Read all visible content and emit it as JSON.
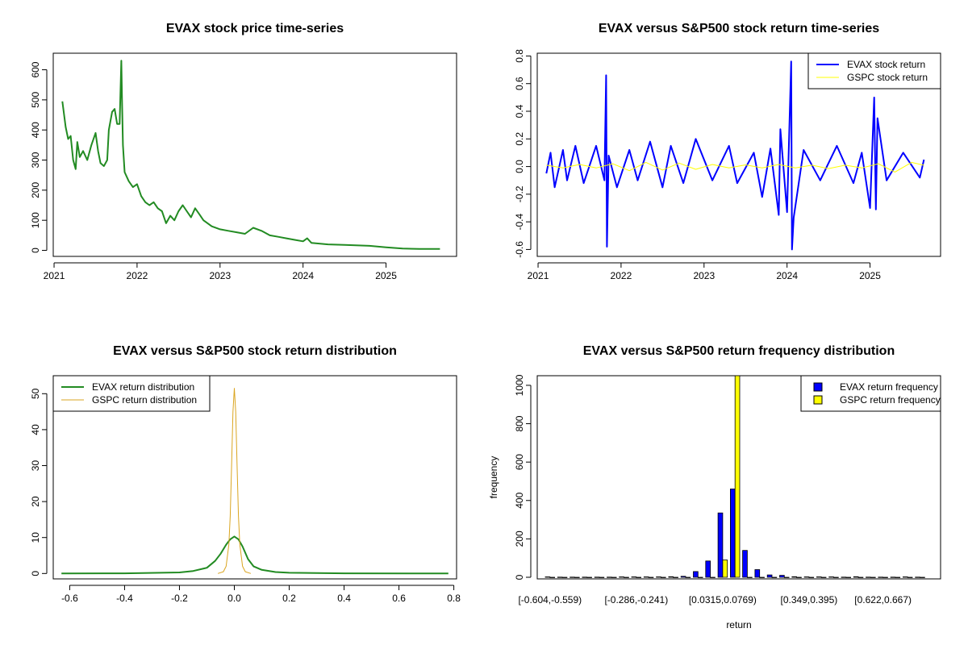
{
  "colors": {
    "price": "#228B22",
    "evax_return": "#0000FF",
    "gspc_return": "#FFFF00",
    "evax_density": "#228B22",
    "gspc_density": "#DAA520",
    "evax_bar": "#0000FF",
    "gspc_bar": "#FFFF00"
  },
  "chart_data": [
    {
      "id": "price",
      "type": "line",
      "title": "EVAX stock price time-series",
      "xlabel": "",
      "ylabel": "",
      "xlim": [
        2020.99,
        2025.85
      ],
      "ylim": [
        -20,
        655
      ],
      "xticks": [
        2021,
        2022,
        2023,
        2024,
        2025
      ],
      "xtick_labels": [
        "2021",
        "2022",
        "2023",
        "2024",
        "2025"
      ],
      "yticks": [
        0,
        100,
        200,
        300,
        400,
        500,
        600
      ],
      "ytick_labels": [
        "0",
        "100",
        "200",
        "300",
        "400",
        "500",
        "600"
      ],
      "series": [
        {
          "name": "EVAX price",
          "x": [
            2021.1,
            2021.14,
            2021.17,
            2021.2,
            2021.23,
            2021.26,
            2021.28,
            2021.31,
            2021.35,
            2021.4,
            2021.45,
            2021.5,
            2021.53,
            2021.56,
            2021.6,
            2021.64,
            2021.66,
            2021.7,
            2021.73,
            2021.76,
            2021.79,
            2021.81,
            2021.82,
            2021.83,
            2021.85,
            2021.9,
            2021.95,
            2022.0,
            2022.05,
            2022.1,
            2022.15,
            2022.2,
            2022.25,
            2022.3,
            2022.35,
            2022.4,
            2022.45,
            2022.5,
            2022.55,
            2022.6,
            2022.65,
            2022.7,
            2022.75,
            2022.8,
            2022.9,
            2023.0,
            2023.1,
            2023.2,
            2023.3,
            2023.4,
            2023.5,
            2023.6,
            2023.7,
            2023.8,
            2023.9,
            2024.0,
            2024.05,
            2024.1,
            2024.3,
            2024.5,
            2024.8,
            2025.0,
            2025.2,
            2025.4,
            2025.6,
            2025.65
          ],
          "values": [
            495,
            410,
            370,
            380,
            300,
            270,
            360,
            310,
            330,
            300,
            350,
            390,
            330,
            290,
            280,
            300,
            400,
            460,
            470,
            420,
            420,
            630,
            480,
            350,
            260,
            230,
            210,
            220,
            180,
            160,
            150,
            160,
            140,
            130,
            90,
            115,
            100,
            130,
            150,
            130,
            110,
            140,
            120,
            100,
            80,
            70,
            65,
            60,
            55,
            75,
            65,
            50,
            45,
            40,
            35,
            30,
            40,
            25,
            20,
            18,
            15,
            10,
            6,
            5,
            5,
            5
          ]
        }
      ]
    },
    {
      "id": "returns",
      "type": "line",
      "title": "EVAX versus S&P500 stock return time-series",
      "xlabel": "",
      "ylabel": "",
      "xlim": [
        2020.99,
        2025.85
      ],
      "ylim": [
        -0.65,
        0.82
      ],
      "xticks": [
        2021,
        2022,
        2023,
        2024,
        2025
      ],
      "xtick_labels": [
        "2021",
        "2022",
        "2023",
        "2024",
        "2025"
      ],
      "yticks": [
        -0.6,
        -0.4,
        -0.2,
        0.0,
        0.2,
        0.4,
        0.6,
        0.8
      ],
      "ytick_labels": [
        "-0.6",
        "-0.4",
        "-0.2",
        "0.0",
        "0.2",
        "0.4",
        "0.6",
        "0.8"
      ],
      "legend_position": "top-right",
      "series": [
        {
          "name": "EVAX stock return",
          "x": [
            2021.1,
            2021.15,
            2021.2,
            2021.3,
            2021.35,
            2021.45,
            2021.55,
            2021.7,
            2021.8,
            2021.82,
            2021.83,
            2021.85,
            2021.95,
            2022.1,
            2022.2,
            2022.35,
            2022.5,
            2022.6,
            2022.75,
            2022.9,
            2023.1,
            2023.3,
            2023.4,
            2023.6,
            2023.7,
            2023.8,
            2023.9,
            2023.92,
            2024.0,
            2024.05,
            2024.06,
            2024.08,
            2024.2,
            2024.4,
            2024.6,
            2024.8,
            2024.9,
            2025.0,
            2025.05,
            2025.07,
            2025.09,
            2025.2,
            2025.4,
            2025.6,
            2025.65
          ],
          "values": [
            -0.05,
            0.1,
            -0.15,
            0.12,
            -0.1,
            0.15,
            -0.12,
            0.15,
            -0.1,
            0.66,
            -0.58,
            0.08,
            -0.15,
            0.12,
            -0.1,
            0.18,
            -0.15,
            0.15,
            -0.12,
            0.2,
            -0.1,
            0.15,
            -0.12,
            0.1,
            -0.22,
            0.13,
            -0.35,
            0.27,
            -0.33,
            0.76,
            -0.6,
            -0.37,
            0.12,
            -0.1,
            0.15,
            -0.12,
            0.1,
            -0.3,
            0.5,
            -0.31,
            0.35,
            -0.1,
            0.1,
            -0.08,
            0.05
          ]
        },
        {
          "name": "GSPC stock return",
          "x": [
            2021.1,
            2021.3,
            2021.5,
            2021.7,
            2021.9,
            2022.1,
            2022.3,
            2022.5,
            2022.7,
            2022.9,
            2023.1,
            2023.3,
            2023.5,
            2023.7,
            2023.9,
            2024.1,
            2024.3,
            2024.5,
            2024.7,
            2024.9,
            2025.1,
            2025.3,
            2025.5,
            2025.65
          ],
          "values": [
            0.01,
            -0.01,
            0.015,
            -0.01,
            0.02,
            -0.03,
            0.03,
            -0.025,
            0.025,
            -0.02,
            0.015,
            -0.01,
            0.012,
            -0.01,
            0.015,
            -0.01,
            0.01,
            -0.015,
            0.01,
            -0.01,
            0.02,
            -0.04,
            0.03,
            0.01
          ]
        }
      ]
    },
    {
      "id": "density",
      "type": "line",
      "title": "EVAX versus S&P500 stock return distribution",
      "xlabel": "",
      "ylabel": "",
      "xlim": [
        -0.66,
        0.81
      ],
      "ylim": [
        -1.5,
        55
      ],
      "xticks": [
        -0.6,
        -0.4,
        -0.2,
        0.0,
        0.2,
        0.4,
        0.6,
        0.8
      ],
      "xtick_labels": [
        "-0.6",
        "-0.4",
        "-0.2",
        "0.0",
        "0.2",
        "0.4",
        "0.6",
        "0.8"
      ],
      "yticks": [
        0,
        10,
        20,
        30,
        40,
        50
      ],
      "ytick_labels": [
        "0",
        "10",
        "20",
        "30",
        "40",
        "50"
      ],
      "legend_position": "top-left",
      "series": [
        {
          "name": "EVAX return distribution",
          "x": [
            -0.63,
            -0.4,
            -0.2,
            -0.15,
            -0.1,
            -0.07,
            -0.05,
            -0.03,
            -0.015,
            0.0,
            0.015,
            0.03,
            0.05,
            0.07,
            0.1,
            0.15,
            0.2,
            0.4,
            0.78
          ],
          "values": [
            0,
            0.05,
            0.3,
            0.7,
            1.6,
            3.5,
            5.5,
            8.0,
            9.5,
            10.3,
            9.5,
            7.5,
            4.0,
            2.0,
            1.0,
            0.4,
            0.2,
            0.05,
            0
          ]
        },
        {
          "name": "GSPC return distribution",
          "x": [
            -0.06,
            -0.04,
            -0.03,
            -0.02,
            -0.015,
            -0.01,
            -0.005,
            0.0,
            0.005,
            0.01,
            0.015,
            0.02,
            0.03,
            0.04,
            0.06
          ],
          "values": [
            0,
            0.5,
            2,
            8,
            16,
            30,
            45,
            51.5,
            45,
            30,
            16,
            8,
            2,
            0.5,
            0
          ]
        }
      ]
    },
    {
      "id": "frequency",
      "type": "bar",
      "title": "EVAX versus S&P500 return frequency distribution",
      "xlabel": "return",
      "ylabel": "frequency",
      "ylim": [
        0,
        1050
      ],
      "yticks": [
        0,
        200,
        400,
        600,
        800,
        1000
      ],
      "ytick_labels": [
        "0",
        "200",
        "400",
        "600",
        "800",
        "1000"
      ],
      "xtick_labels_shown": [
        "[-0.604,-0.559)",
        "[-0.286,-0.241)",
        "[0.0315,0.0769)",
        "[0.349,0.395)",
        "[0.622,0.667)"
      ],
      "xtick_bins": [
        0,
        7,
        14,
        21,
        27
      ],
      "legend_position": "top-right",
      "bin_count": 31,
      "series": [
        {
          "name": "EVAX return frequency",
          "values": [
            2,
            1,
            1,
            1,
            1,
            1,
            2,
            2,
            2,
            2,
            3,
            5,
            30,
            85,
            335,
            460,
            140,
            40,
            12,
            10,
            3,
            2,
            2,
            2,
            1,
            3,
            1,
            1,
            1,
            2,
            1
          ]
        },
        {
          "name": "GSPC return frequency",
          "values": [
            0,
            0,
            0,
            0,
            0,
            0,
            0,
            0,
            0,
            0,
            0,
            0,
            0,
            0,
            90,
            1050,
            0,
            0,
            0,
            0,
            0,
            0,
            0,
            0,
            0,
            0,
            0,
            0,
            0,
            0,
            0
          ]
        }
      ]
    }
  ]
}
